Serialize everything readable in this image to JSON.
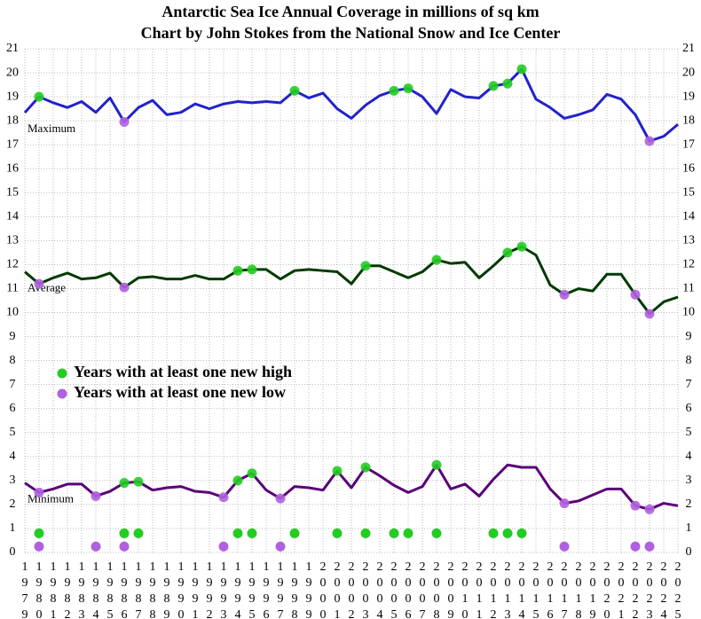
{
  "chart_data": {
    "type": "line",
    "title": "Antarctic Sea Ice Annual Coverage in millions of sq km",
    "subtitle": "Chart by John Stokes from the National Snow and Ice Center",
    "x": [
      1979,
      1980,
      1981,
      1982,
      1983,
      1984,
      1985,
      1986,
      1987,
      1988,
      1989,
      1990,
      1991,
      1992,
      1993,
      1994,
      1995,
      1996,
      1997,
      1998,
      1999,
      2000,
      2001,
      2002,
      2003,
      2004,
      2005,
      2006,
      2007,
      2008,
      2009,
      2010,
      2011,
      2012,
      2013,
      2014,
      2015,
      2016,
      2017,
      2018,
      2019,
      2020,
      2021,
      2022,
      2023,
      2024,
      2025
    ],
    "xlim": [
      1979,
      2025
    ],
    "ylim": [
      0,
      21
    ],
    "yticks": [
      0,
      1,
      2,
      3,
      4,
      5,
      6,
      7,
      8,
      9,
      10,
      11,
      12,
      13,
      14,
      15,
      16,
      17,
      18,
      19,
      20,
      21
    ],
    "grid": true,
    "legend": {
      "high": {
        "label": "Years with at least one new high",
        "color": "#22cc22"
      },
      "low": {
        "label": "Years with at least one new low",
        "color": "#b060e0"
      }
    },
    "series": [
      {
        "name": "Maximum",
        "color": "#2222cc",
        "values": [
          18.34,
          19.0,
          18.75,
          18.55,
          18.8,
          18.35,
          18.95,
          17.95,
          18.55,
          18.85,
          18.25,
          18.35,
          18.7,
          18.5,
          18.7,
          18.8,
          18.75,
          18.8,
          18.75,
          19.25,
          18.95,
          19.15,
          18.5,
          18.1,
          18.65,
          19.05,
          19.25,
          19.35,
          19.0,
          18.3,
          19.3,
          19.0,
          18.95,
          19.45,
          19.55,
          20.15,
          18.9,
          18.55,
          18.1,
          18.25,
          18.45,
          19.1,
          18.9,
          18.25,
          17.15,
          17.35,
          17.85
        ],
        "highs": [
          1980,
          1998,
          2005,
          2006,
          2012,
          2013,
          2014
        ],
        "lows": [
          1986,
          2023
        ]
      },
      {
        "name": "Average",
        "color": "#003a00",
        "values": [
          11.7,
          11.2,
          11.45,
          11.65,
          11.4,
          11.45,
          11.65,
          11.05,
          11.45,
          11.5,
          11.4,
          11.4,
          11.55,
          11.4,
          11.4,
          11.75,
          11.8,
          11.8,
          11.4,
          11.75,
          11.8,
          11.75,
          11.7,
          11.2,
          11.95,
          11.95,
          11.7,
          11.45,
          11.7,
          12.2,
          12.05,
          12.1,
          11.45,
          11.95,
          12.5,
          12.75,
          12.4,
          11.15,
          10.75,
          11.0,
          10.9,
          11.6,
          11.6,
          10.75,
          9.95,
          10.45,
          10.65
        ],
        "highs": [
          1994,
          1995,
          2003,
          2008,
          2013,
          2014
        ],
        "lows": [
          1980,
          1986,
          2017,
          2022,
          2023
        ]
      },
      {
        "name": "Minimum",
        "color": "#5a0078",
        "values": [
          2.9,
          2.5,
          2.65,
          2.85,
          2.85,
          2.35,
          2.55,
          2.9,
          2.95,
          2.6,
          2.7,
          2.75,
          2.55,
          2.5,
          2.3,
          3.0,
          3.3,
          2.6,
          2.25,
          2.75,
          2.7,
          2.6,
          3.4,
          2.7,
          3.55,
          3.2,
          2.8,
          2.5,
          2.75,
          3.65,
          2.65,
          2.85,
          2.35,
          3.05,
          3.65,
          3.55,
          3.55,
          2.65,
          2.05,
          2.15,
          2.4,
          2.65,
          2.65,
          1.95,
          1.8,
          2.05,
          1.95
        ],
        "highs": [
          1986,
          1987,
          1994,
          1995,
          2001,
          2003,
          2008
        ],
        "lows": [
          1980,
          1984,
          1993,
          1997,
          2017,
          2022,
          2023
        ]
      }
    ]
  }
}
